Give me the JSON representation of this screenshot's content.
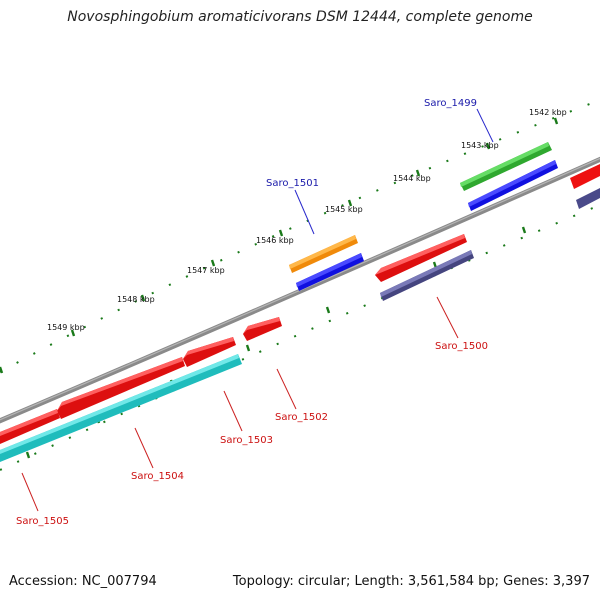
{
  "title": "Novosphingobium aromaticivorans DSM 12444, complete genome",
  "footer": {
    "accession": "Accession: NC_007794",
    "topology": "Topology: circular; Length: 3,561,584 bp; Genes: 3,397"
  },
  "colors": {
    "backbone": "#808080",
    "tick": "#1a7a1a",
    "label_forward": "#1a1aaa",
    "label_reverse": "#cc1111"
  },
  "kbp_labels": [
    "1542 kbp",
    "1543 kbp",
    "1544 kbp",
    "1545 kbp",
    "1546 kbp",
    "1547 kbp",
    "1548 kbp",
    "1549 kbp"
  ],
  "genes": [
    {
      "id": "Saro_1499",
      "strand": "forward",
      "colors": [
        "#33bb33",
        "#1111ee"
      ]
    },
    {
      "id": "Saro_1500",
      "strand": "reverse",
      "colors": [
        "#ee1111",
        "#4a4a8a"
      ]
    },
    {
      "id": "Saro_1501",
      "strand": "forward",
      "colors": [
        "#ff9911",
        "#1111ee"
      ]
    },
    {
      "id": "Saro_1502",
      "strand": "reverse",
      "colors": [
        "#ee1111"
      ]
    },
    {
      "id": "Saro_1503",
      "strand": "reverse",
      "colors": [
        "#ee1111"
      ]
    },
    {
      "id": "Saro_1504",
      "strand": "reverse",
      "colors": [
        "#ee1111",
        "#22cccc"
      ]
    },
    {
      "id": "Saro_1505",
      "strand": "reverse",
      "colors": [
        "#ee1111",
        "#22cccc"
      ]
    }
  ]
}
